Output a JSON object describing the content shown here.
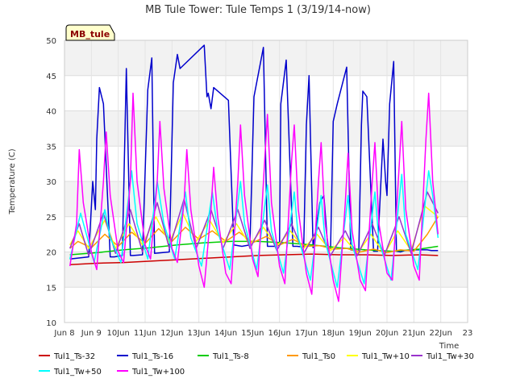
{
  "chart_data": {
    "type": "line",
    "title": "MB Tule Tower: Tule Temps 1 (3/19/14-now)",
    "xlabel": "Time",
    "ylabel": "Temperature (C)",
    "xlim": [
      8,
      23
    ],
    "ylim": [
      10,
      50
    ],
    "x_ticks": [
      8,
      9,
      10,
      11,
      12,
      13,
      14,
      15,
      16,
      17,
      18,
      19,
      20,
      21,
      22,
      23
    ],
    "x_tick_labels": [
      "Jun 8",
      "Jun 9",
      "10Jun",
      "11Jun",
      "12Jun",
      "13Jun",
      "14Jun",
      "15Jun",
      "16Jun",
      "17Jun",
      "18Jun",
      "19Jun",
      "20Jun",
      "21Jun",
      "22Jun",
      "23"
    ],
    "y_ticks": [
      10,
      15,
      20,
      25,
      30,
      35,
      40,
      45,
      50
    ],
    "y_tick_labels": [
      "10",
      "15",
      "20",
      "25",
      "30",
      "35",
      "40",
      "45",
      "50"
    ],
    "badge": "MB_tule",
    "legend_position": "bottom",
    "series": [
      {
        "name": "Tul1_Ts-32",
        "color": "#cc0000",
        "x": [
          8.2,
          9.2,
          10.2,
          11.2,
          12.2,
          13.2,
          14.2,
          15.2,
          16.2,
          17.2,
          18.2,
          19.2,
          20.2,
          21.2,
          21.9
        ],
        "y": [
          18.2,
          18.4,
          18.5,
          18.7,
          18.9,
          19.1,
          19.3,
          19.5,
          19.6,
          19.7,
          19.6,
          19.6,
          19.5,
          19.6,
          19.5
        ]
      },
      {
        "name": "Tul1_Ts-16",
        "color": "#0000cc",
        "x": [
          8.2,
          8.9,
          9.05,
          9.15,
          9.2,
          9.3,
          9.45,
          9.7,
          9.85,
          10.15,
          10.3,
          10.45,
          10.55,
          10.9,
          11.1,
          11.25,
          11.35,
          11.9,
          12.05,
          12.2,
          12.3,
          13.2,
          13.3,
          13.35,
          13.45,
          13.55,
          14.1,
          14.3,
          14.6,
          14.9,
          15.05,
          15.4,
          15.55,
          15.85,
          16.0,
          16.05,
          16.25,
          16.5,
          16.65,
          16.9,
          17.0,
          17.1,
          17.25,
          17.5,
          17.65,
          17.8,
          17.9,
          18.0,
          18.15,
          18.5,
          18.65,
          18.95,
          19.05,
          19.1,
          19.25,
          19.5,
          19.65,
          19.85,
          19.95,
          20.0,
          20.1,
          20.25,
          20.35,
          20.5,
          20.65,
          20.9,
          21.05,
          21.5,
          21.65,
          21.9
        ],
        "y": [
          19.0,
          19.3,
          30.0,
          26.0,
          36.0,
          43.3,
          41.0,
          19.3,
          19.3,
          19.5,
          46.0,
          19.5,
          19.5,
          19.6,
          43.0,
          47.5,
          19.8,
          20.0,
          44.0,
          48.0,
          46.0,
          49.3,
          42.0,
          42.5,
          40.3,
          43.3,
          41.5,
          21.0,
          20.8,
          21.0,
          42.0,
          49.0,
          20.8,
          20.8,
          21.0,
          41.0,
          47.2,
          20.8,
          20.8,
          20.7,
          38.0,
          45.0,
          20.6,
          27.0,
          28.0,
          20.5,
          20.5,
          38.5,
          41.0,
          46.2,
          20.3,
          20.1,
          38.0,
          42.8,
          42.0,
          20.1,
          20.1,
          36.0,
          30.0,
          28.0,
          41.0,
          47.0,
          20.1,
          20.0,
          20.2,
          20.2,
          20.3,
          20.3,
          20.2,
          20.2
        ]
      },
      {
        "name": "Tul1_Ts-8",
        "color": "#00cc00",
        "x": [
          8.2,
          9.2,
          10.2,
          11.2,
          12.2,
          13.2,
          14.2,
          15.2,
          16.2,
          17.2,
          18.2,
          19.2,
          20.2,
          21.2,
          21.9
        ],
        "y": [
          19.6,
          19.9,
          20.3,
          20.6,
          21.0,
          21.3,
          21.5,
          21.5,
          21.3,
          21.0,
          20.6,
          20.3,
          20.1,
          20.4,
          20.8
        ]
      },
      {
        "name": "Tul1_Ts0",
        "color": "#ff9900",
        "x": [
          8.2,
          8.5,
          9.0,
          9.5,
          10.0,
          10.5,
          11.0,
          11.5,
          12.0,
          12.5,
          13.0,
          13.5,
          14.0,
          14.5,
          15.0,
          15.5,
          16.0,
          16.5,
          17.0,
          17.5,
          18.0,
          18.5,
          19.0,
          19.5,
          20.0,
          20.5,
          21.0,
          21.5,
          21.9
        ],
        "y": [
          20.5,
          21.5,
          20.6,
          22.5,
          20.8,
          22.8,
          21.2,
          23.3,
          21.5,
          23.5,
          21.8,
          23.0,
          21.5,
          22.8,
          21.3,
          22.2,
          21.0,
          21.8,
          20.8,
          20.9,
          20.4,
          20.5,
          20.0,
          20.4,
          19.9,
          20.3,
          20.1,
          22.5,
          25.0
        ]
      },
      {
        "name": "Tul1_Tw+10",
        "color": "#ffff00",
        "x": [
          8.2,
          8.5,
          8.9,
          9.5,
          9.9,
          10.4,
          10.9,
          11.4,
          11.9,
          12.4,
          12.9,
          13.4,
          13.9,
          14.4,
          14.9,
          15.4,
          15.9,
          16.4,
          16.9,
          17.4,
          17.9,
          18.4,
          18.9,
          19.4,
          19.9,
          20.4,
          20.9,
          21.4,
          21.9
        ],
        "y": [
          21.0,
          23.0,
          20.5,
          24.5,
          20.5,
          24.0,
          21.0,
          25.0,
          21.3,
          25.5,
          21.5,
          24.5,
          21.3,
          24.0,
          21.0,
          23.5,
          20.8,
          23.0,
          20.5,
          22.5,
          20.2,
          22.0,
          19.8,
          22.5,
          19.7,
          23.0,
          20.2,
          26.5,
          25.0
        ]
      },
      {
        "name": "Tul1_Tw+30",
        "color": "#9933cc",
        "x": [
          8.2,
          8.55,
          8.9,
          9.45,
          9.9,
          10.45,
          10.9,
          11.45,
          11.9,
          12.45,
          12.9,
          13.45,
          13.9,
          14.45,
          14.9,
          15.45,
          15.9,
          16.45,
          16.9,
          17.45,
          17.9,
          18.45,
          18.9,
          19.45,
          19.9,
          20.45,
          20.9,
          21.5,
          21.9
        ],
        "y": [
          20.5,
          24.0,
          19.5,
          25.5,
          19.8,
          26.0,
          20.0,
          27.0,
          20.5,
          27.5,
          20.5,
          26.0,
          20.5,
          26.0,
          20.5,
          24.5,
          20.2,
          24.0,
          19.8,
          23.5,
          19.5,
          23.0,
          19.5,
          24.0,
          19.5,
          25.0,
          19.8,
          28.5,
          25.5
        ]
      },
      {
        "name": "Tul1_Tw+50",
        "color": "#00ffff",
        "x": [
          8.2,
          8.6,
          9.1,
          9.5,
          9.7,
          10.1,
          10.5,
          10.7,
          11.1,
          11.45,
          11.7,
          12.1,
          12.5,
          12.7,
          13.1,
          13.5,
          13.7,
          14.15,
          14.55,
          14.7,
          15.15,
          15.55,
          15.7,
          16.15,
          16.55,
          16.7,
          17.15,
          17.55,
          17.7,
          18.15,
          18.55,
          18.7,
          19.15,
          19.55,
          19.7,
          20.15,
          20.55,
          20.7,
          21.15,
          21.55,
          21.7,
          21.9
        ],
        "y": [
          19.0,
          25.5,
          18.5,
          26.0,
          22.0,
          18.5,
          31.5,
          24.0,
          19.0,
          30.0,
          24.0,
          19.0,
          28.5,
          22.0,
          18.0,
          28.5,
          23.0,
          17.5,
          30.0,
          24.0,
          17.5,
          29.5,
          23.0,
          17.0,
          28.5,
          22.0,
          16.0,
          28.0,
          21.5,
          15.0,
          28.0,
          21.0,
          15.5,
          28.5,
          21.5,
          16.0,
          31.0,
          22.5,
          17.5,
          31.5,
          28.0,
          22.0
        ]
      },
      {
        "name": "Tul1_Tw+100",
        "color": "#ff00ff",
        "x": [
          8.2,
          8.45,
          8.55,
          8.7,
          9.0,
          9.2,
          9.45,
          9.55,
          9.7,
          10.0,
          10.2,
          10.45,
          10.55,
          10.7,
          11.0,
          11.2,
          11.45,
          11.55,
          11.7,
          12.0,
          12.2,
          12.45,
          12.55,
          12.7,
          13.0,
          13.2,
          13.45,
          13.55,
          13.7,
          14.0,
          14.2,
          14.45,
          14.55,
          14.7,
          15.0,
          15.2,
          15.45,
          15.55,
          15.7,
          16.0,
          16.2,
          16.45,
          16.55,
          16.7,
          17.0,
          17.2,
          17.45,
          17.55,
          17.7,
          18.0,
          18.2,
          18.45,
          18.55,
          18.7,
          19.0,
          19.2,
          19.45,
          19.55,
          19.7,
          20.0,
          20.2,
          20.45,
          20.55,
          20.7,
          21.0,
          21.2,
          21.45,
          21.55,
          21.7,
          21.9
        ],
        "y": [
          18.0,
          24.0,
          34.5,
          27.0,
          20.0,
          17.5,
          30.0,
          37.0,
          28.0,
          20.0,
          18.5,
          30.0,
          42.5,
          30.0,
          21.0,
          19.0,
          30.0,
          38.5,
          29.0,
          20.5,
          18.5,
          27.0,
          34.5,
          26.0,
          18.0,
          15.0,
          26.0,
          32.0,
          25.0,
          17.0,
          15.5,
          30.0,
          38.0,
          28.0,
          19.0,
          16.5,
          33.0,
          39.5,
          27.0,
          18.0,
          15.5,
          33.0,
          38.0,
          26.0,
          17.0,
          14.0,
          30.0,
          35.5,
          24.0,
          16.0,
          13.0,
          27.0,
          34.0,
          23.0,
          16.0,
          14.5,
          30.0,
          35.5,
          24.0,
          17.0,
          16.0,
          32.0,
          38.5,
          26.0,
          18.0,
          16.0,
          36.0,
          42.5,
          30.0,
          22.5
        ]
      }
    ]
  }
}
